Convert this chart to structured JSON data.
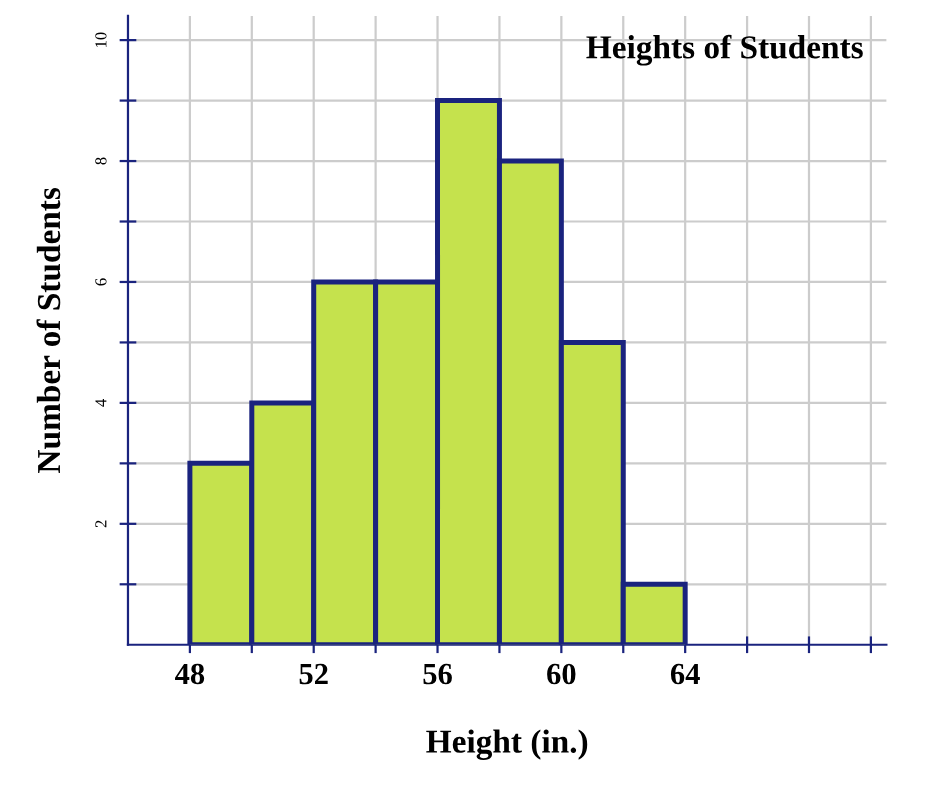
{
  "chart_data": {
    "type": "histogram",
    "title": "Heights of Students",
    "xlabel": "Height (in.)",
    "ylabel": "Number of Students",
    "bins": [
      48,
      50,
      52,
      54,
      56,
      58,
      60,
      62,
      64
    ],
    "values": [
      3,
      4,
      6,
      6,
      9,
      8,
      5,
      1
    ],
    "color": "#c5e24d",
    "xlim": [
      46,
      70.5
    ],
    "ylim": [
      0,
      10.4
    ],
    "xticks": [
      48,
      {
        "value": 50,
        "label": null
      },
      52,
      {
        "value": 54,
        "label": null
      },
      56,
      {
        "value": 58,
        "label": null
      },
      60,
      {
        "value": 62,
        "label": null
      },
      64,
      {
        "value": 66,
        "label": null
      },
      {
        "value": 68,
        "label": null
      },
      {
        "value": 70,
        "label": null
      }
    ],
    "yticks": [
      {
        "value": 1,
        "label": null
      },
      2,
      {
        "value": 3,
        "label": null
      },
      4,
      {
        "value": 5,
        "label": null
      },
      6,
      {
        "value": 7,
        "label": null
      },
      8,
      {
        "value": 9,
        "label": null
      },
      10
    ],
    "grid": true
  }
}
